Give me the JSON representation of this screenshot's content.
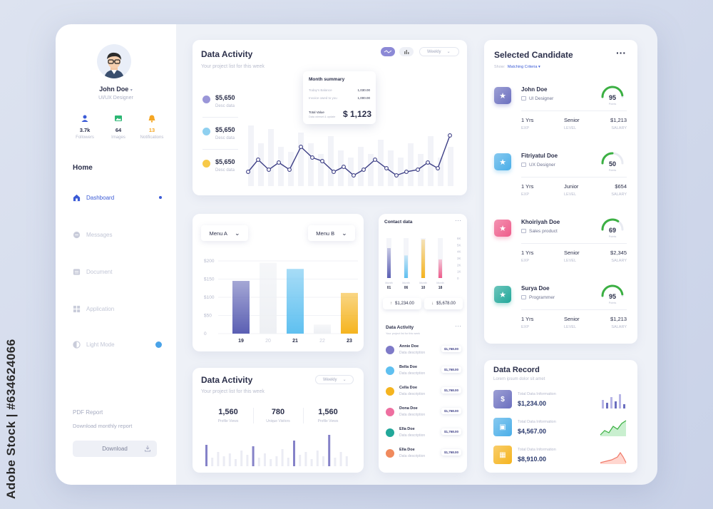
{
  "watermark": "Adobe Stock | #634624066",
  "user": {
    "name": "John Doe",
    "role": "UI/UX Designer"
  },
  "stats": [
    {
      "value": "3.7k",
      "label": "Followers",
      "icon": "user-icon",
      "color": "#3b5bd6"
    },
    {
      "value": "64",
      "label": "Images",
      "icon": "image-icon",
      "color": "#2bb673"
    },
    {
      "value": "13",
      "label": "Notifications",
      "icon": "bell-icon",
      "color": "#f5a623"
    }
  ],
  "nav": {
    "home": "Home",
    "items": [
      {
        "label": "Dashboard",
        "icon": "home-icon"
      },
      {
        "label": "Messages",
        "icon": "message-icon"
      },
      {
        "label": "Document",
        "icon": "document-icon"
      },
      {
        "label": "Application",
        "icon": "grid-icon"
      },
      {
        "label": "Light Mode",
        "icon": "half-moon-icon"
      }
    ]
  },
  "report": {
    "title": "PDF Report",
    "link": "Download monthly report",
    "button": "Download"
  },
  "activity_top": {
    "title": "Data Activity",
    "subtitle": "Your project list for this week",
    "period": "Weekly",
    "legend": [
      {
        "value": "$5,650",
        "label": "Desc data",
        "color": "#9a96d8"
      },
      {
        "value": "$5,650",
        "label": "Desc data",
        "color": "#8fd0f0"
      },
      {
        "value": "$5,650",
        "label": "Desc data",
        "color": "#f7c948"
      }
    ],
    "summary": {
      "title": "Month summary",
      "rows": [
        {
          "label": "Today's Balance",
          "value": "1,030.00"
        },
        {
          "label": "Invoice owed to you",
          "value": "1,000.00"
        }
      ],
      "total_label": "Total Value",
      "total_sub": "Data wireset & update",
      "total": "$ 1,123"
    }
  },
  "menu_chart": {
    "menu_a": "Menu A",
    "menu_b": "Menu B",
    "chart_data": {
      "type": "bar",
      "categories": [
        "19",
        "20",
        "21",
        "22",
        "23"
      ],
      "values": [
        145,
        195,
        178,
        25,
        112
      ],
      "ylim": [
        0,
        200
      ],
      "ticks": [
        "$200",
        "$150",
        "$100",
        "$50",
        "0"
      ],
      "colors": [
        "#5b5fb3",
        "#eef0f4",
        "#5fc0f0",
        "#eef0f4",
        "#f5b41f"
      ]
    }
  },
  "contact": {
    "title": "Contact data",
    "chart_data": {
      "type": "bar",
      "categories": [
        "01",
        "06",
        "10",
        "18"
      ],
      "ticks": [
        "6K",
        "5K",
        "4K",
        "3K",
        "2K",
        "1K",
        "0"
      ],
      "values": [
        4500,
        3400,
        5800,
        2800
      ],
      "colors": [
        "#5b5fb3",
        "#5fc0f0",
        "#f5b41f",
        "#ee5b8a"
      ],
      "ylim": [
        0,
        6000
      ]
    },
    "month_label": "Month",
    "up": "$1,234.00",
    "down": "$5,678.00"
  },
  "people": {
    "title": "Data Activity",
    "subtitle": "Your project list for this week",
    "items": [
      {
        "name": "Annie Doe",
        "desc": "Data description",
        "amount": "$1,768.00",
        "color": "#7e7ac8"
      },
      {
        "name": "Bella Doe",
        "desc": "Data description",
        "amount": "$1,768.00",
        "color": "#5fc0f0"
      },
      {
        "name": "Cella Doe",
        "desc": "Data description",
        "amount": "$1,768.00",
        "color": "#f5b41f"
      },
      {
        "name": "Dona Doe",
        "desc": "Data description",
        "amount": "$1,768.00",
        "color": "#ee6fa0"
      },
      {
        "name": "Ella Doe",
        "desc": "Data description",
        "amount": "$1,768.00",
        "color": "#22a89a"
      },
      {
        "name": "Ella Doe",
        "desc": "Data description",
        "amount": "$1,768.00",
        "color": "#f08a5d"
      }
    ]
  },
  "activity_bottom": {
    "title": "Data Activity",
    "subtitle": "Your project list for this week",
    "period": "Weekly",
    "kpis": [
      {
        "value": "1,560",
        "label": "Profile Views"
      },
      {
        "value": "780",
        "label": "Unique Visitors"
      },
      {
        "value": "1,560",
        "label": "Profile Views"
      }
    ]
  },
  "candidates": {
    "title": "Selected Candidate",
    "show_label": "Show:",
    "filter": "Matching Criteria",
    "items": [
      {
        "name": "John Doe",
        "role": "UI Designer",
        "score": "95",
        "score_label": "Points",
        "score_pct": 0.95,
        "exp": "1 Yrs",
        "level": "Senior",
        "salary": "$1,213",
        "color": "#6b6fbf"
      },
      {
        "name": "Fitriyatul Doe",
        "role": "UX Designer",
        "score": "50",
        "score_label": "Points",
        "score_pct": 0.5,
        "exp": "1 Yrs",
        "level": "Junior",
        "salary": "$654",
        "color": "#4aaee8"
      },
      {
        "name": "Khoiriyah Doe",
        "role": "Sales product",
        "score": "69",
        "score_label": "Points",
        "score_pct": 0.69,
        "exp": "1 Yrs",
        "level": "Senior",
        "salary": "$2,345",
        "color": "#ee5b8a"
      },
      {
        "name": "Surya Doe",
        "role": "Programmer",
        "score": "95",
        "score_label": "Points",
        "score_pct": 0.95,
        "exp": "1 Yrs",
        "level": "Senior",
        "salary": "$1,213",
        "color": "#22a89a"
      }
    ],
    "labels": {
      "exp": "EXP",
      "level": "LEVEL",
      "salary": "SALARY"
    }
  },
  "record": {
    "title": "Data Record",
    "subtitle": "Lorem ipsum dolor sit amet",
    "items": [
      {
        "label": "Total Data Information",
        "value": "$1,234.00",
        "color": "#6b6fbf",
        "icon": "dollar-icon"
      },
      {
        "label": "Total Data Information",
        "value": "$4,567.00",
        "color": "#4aaee8",
        "icon": "wallet-icon"
      },
      {
        "label": "Total Data Information",
        "value": "$8,910.00",
        "color": "#f5b41f",
        "icon": "box-icon"
      }
    ]
  }
}
